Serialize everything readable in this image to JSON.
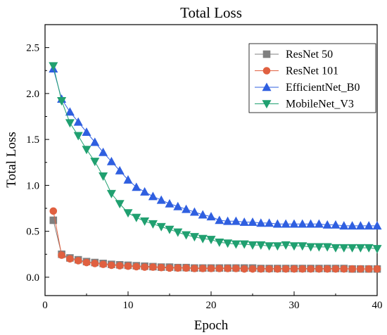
{
  "chart_data": {
    "type": "line",
    "title": "Total Loss",
    "xlabel": "Epoch",
    "ylabel": "Total Loss",
    "xlim": [
      0,
      40
    ],
    "ylim": [
      -0.2,
      2.75
    ],
    "xticks": [
      0,
      10,
      20,
      30,
      40
    ],
    "xtick_labels": [
      "0",
      "10",
      "20",
      "30",
      "40"
    ],
    "yticks": [
      0.0,
      0.5,
      1.0,
      1.5,
      2.0,
      2.5
    ],
    "ytick_labels": [
      "0.0",
      "0.5",
      "1.0",
      "1.5",
      "2.0",
      "2.5"
    ],
    "grid": false,
    "legend_position": "top-right",
    "series": [
      {
        "name": "ResNet 50",
        "color": "#808080",
        "marker": "square",
        "x": [
          1,
          2,
          3,
          4,
          5,
          6,
          7,
          8,
          9,
          10,
          11,
          12,
          13,
          14,
          15,
          16,
          17,
          18,
          19,
          20,
          21,
          22,
          23,
          24,
          25,
          26,
          27,
          28,
          29,
          30,
          31,
          32,
          33,
          34,
          35,
          36,
          37,
          38,
          39,
          40
        ],
        "values": [
          0.62,
          0.25,
          0.21,
          0.19,
          0.17,
          0.16,
          0.15,
          0.14,
          0.135,
          0.13,
          0.125,
          0.12,
          0.115,
          0.11,
          0.11,
          0.105,
          0.105,
          0.1,
          0.1,
          0.1,
          0.1,
          0.1,
          0.1,
          0.1,
          0.1,
          0.095,
          0.095,
          0.095,
          0.095,
          0.095,
          0.095,
          0.095,
          0.095,
          0.095,
          0.095,
          0.095,
          0.09,
          0.09,
          0.09,
          0.09
        ]
      },
      {
        "name": "ResNet 101",
        "color": "#E06040",
        "marker": "circle",
        "x": [
          1,
          2,
          3,
          4,
          5,
          6,
          7,
          8,
          9,
          10,
          11,
          12,
          13,
          14,
          15,
          16,
          17,
          18,
          19,
          20,
          21,
          22,
          23,
          24,
          25,
          26,
          27,
          28,
          29,
          30,
          31,
          32,
          33,
          34,
          35,
          36,
          37,
          38,
          39,
          40
        ],
        "values": [
          0.72,
          0.24,
          0.2,
          0.18,
          0.16,
          0.15,
          0.14,
          0.13,
          0.125,
          0.12,
          0.115,
          0.11,
          0.11,
          0.105,
          0.1,
          0.1,
          0.1,
          0.095,
          0.095,
          0.095,
          0.095,
          0.095,
          0.095,
          0.09,
          0.09,
          0.09,
          0.09,
          0.09,
          0.09,
          0.09,
          0.09,
          0.09,
          0.09,
          0.09,
          0.09,
          0.09,
          0.09,
          0.09,
          0.09,
          0.09
        ]
      },
      {
        "name": "EfficientNet_B0",
        "color": "#2F5FE0",
        "marker": "triangle-up",
        "x": [
          1,
          2,
          3,
          4,
          5,
          6,
          7,
          8,
          9,
          10,
          11,
          12,
          13,
          14,
          15,
          16,
          17,
          18,
          19,
          20,
          21,
          22,
          23,
          24,
          25,
          26,
          27,
          28,
          29,
          30,
          31,
          32,
          33,
          34,
          35,
          36,
          37,
          38,
          39,
          40
        ],
        "values": [
          2.27,
          1.94,
          1.8,
          1.69,
          1.58,
          1.47,
          1.36,
          1.26,
          1.16,
          1.06,
          0.98,
          0.93,
          0.88,
          0.84,
          0.8,
          0.77,
          0.74,
          0.71,
          0.68,
          0.66,
          0.62,
          0.61,
          0.61,
          0.6,
          0.6,
          0.59,
          0.59,
          0.58,
          0.58,
          0.58,
          0.58,
          0.58,
          0.58,
          0.57,
          0.57,
          0.56,
          0.56,
          0.56,
          0.56,
          0.56
        ]
      },
      {
        "name": "MobileNet_V3",
        "color": "#20A070",
        "marker": "triangle-down",
        "x": [
          1,
          2,
          3,
          4,
          5,
          6,
          7,
          8,
          9,
          10,
          11,
          12,
          13,
          14,
          15,
          16,
          17,
          18,
          19,
          20,
          21,
          22,
          23,
          24,
          25,
          26,
          27,
          28,
          29,
          30,
          31,
          32,
          33,
          34,
          35,
          36,
          37,
          38,
          39,
          40
        ],
        "values": [
          2.3,
          1.92,
          1.68,
          1.54,
          1.39,
          1.26,
          1.1,
          0.91,
          0.8,
          0.7,
          0.65,
          0.61,
          0.58,
          0.55,
          0.52,
          0.49,
          0.46,
          0.44,
          0.42,
          0.41,
          0.38,
          0.37,
          0.36,
          0.36,
          0.35,
          0.35,
          0.34,
          0.34,
          0.35,
          0.34,
          0.34,
          0.33,
          0.33,
          0.33,
          0.32,
          0.32,
          0.32,
          0.32,
          0.32,
          0.31
        ]
      }
    ]
  }
}
